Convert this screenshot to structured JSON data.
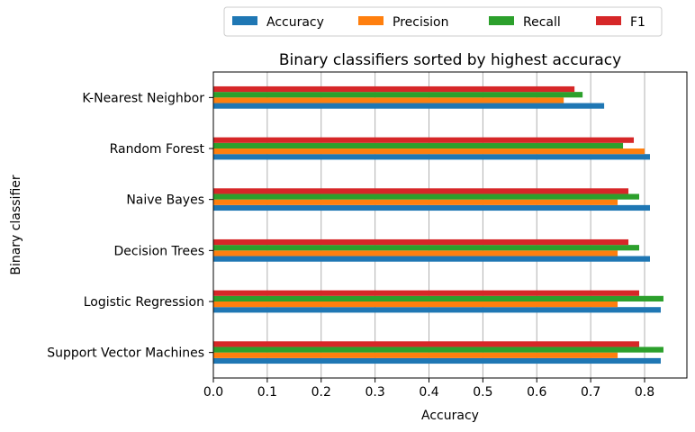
{
  "chart_data": {
    "type": "bar",
    "orientation": "horizontal",
    "title": "Binary classifiers sorted by highest accuracy",
    "xlabel": "Accuracy",
    "ylabel": "Binary classifier",
    "xlim": [
      0.0,
      0.87
    ],
    "xticks": [
      "0.0",
      "0.1",
      "0.2",
      "0.3",
      "0.4",
      "0.5",
      "0.6",
      "0.7",
      "0.8"
    ],
    "grid": "vertical",
    "legend_position": "top, above plot",
    "categories": [
      "Support Vector Machines",
      "Logistic Regression",
      "Decision Trees",
      "Naive Bayes",
      "Random Forest",
      "K-Nearest Neighbor"
    ],
    "series": [
      {
        "name": "Accuracy",
        "color": "#1f77b4",
        "values": [
          0.83,
          0.83,
          0.81,
          0.81,
          0.81,
          0.725
        ]
      },
      {
        "name": "Precision",
        "color": "#ff7f0e",
        "values": [
          0.75,
          0.75,
          0.75,
          0.75,
          0.8,
          0.65
        ]
      },
      {
        "name": "Recall",
        "color": "#2ca02c",
        "values": [
          0.835,
          0.835,
          0.79,
          0.79,
          0.76,
          0.685
        ]
      },
      {
        "name": "F1",
        "color": "#d62728",
        "values": [
          0.79,
          0.79,
          0.77,
          0.77,
          0.78,
          0.67
        ]
      }
    ]
  }
}
